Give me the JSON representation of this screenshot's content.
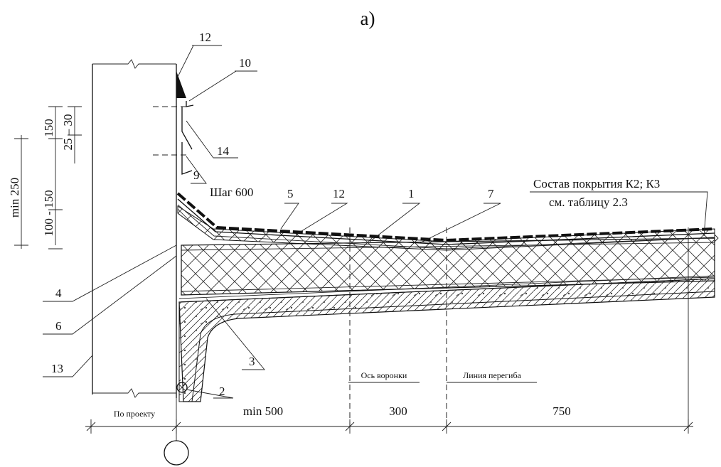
{
  "title": "а)",
  "callouts": [
    "12",
    "10",
    "14",
    "9",
    "5",
    "12",
    "1",
    "7",
    "4",
    "6",
    "3",
    "13",
    "2"
  ],
  "step_note": "Шаг 600",
  "layer_note": [
    "Состав покрытия К2; К3",
    "см. таблицу 2.3"
  ],
  "dimensions": {
    "vertical": [
      "min 250",
      "150",
      "25 – 30",
      "100 - 150"
    ],
    "horizontal": [
      "По проекту",
      "min 500",
      "300",
      "750"
    ]
  },
  "axis_labels": [
    "Ось воронки",
    "Линия перегиба"
  ]
}
